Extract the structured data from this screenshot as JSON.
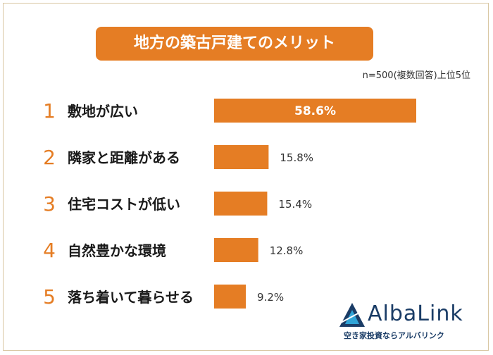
{
  "chart_data": {
    "type": "bar",
    "orientation": "horizontal",
    "title": "地方の築古戸建てのメリット",
    "note": "n=500(複数回答)上位5位",
    "ranks": [
      "1",
      "2",
      "3",
      "4",
      "5"
    ],
    "categories": [
      "敷地が広い",
      "隣家と距離がある",
      "住宅コストが低い",
      "自然豊かな環境",
      "落ち着いて暮らせる"
    ],
    "values": [
      58.6,
      15.8,
      15.4,
      12.8,
      9.2
    ],
    "value_labels": [
      "58.6%",
      "15.8%",
      "15.4%",
      "12.8%",
      "9.2%"
    ],
    "xlim": [
      0,
      58.6
    ],
    "grid": false,
    "legend": "none"
  },
  "colors": {
    "accent": "#e57d24",
    "rank": "#e57d24",
    "brand": "#1a3c66"
  },
  "logo": {
    "word": "AlbaLink",
    "tagline": "空き家投資ならアルバリンク"
  }
}
